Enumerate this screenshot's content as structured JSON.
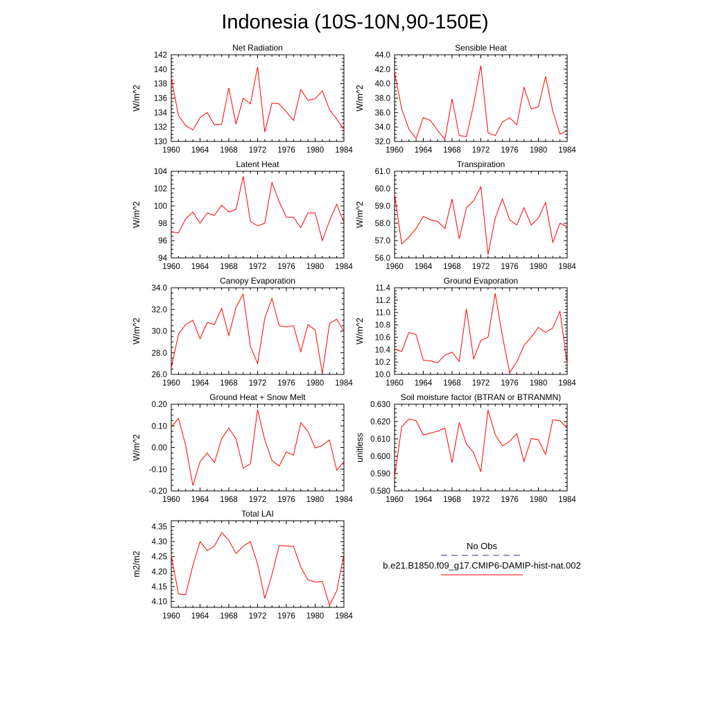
{
  "figure": {
    "title": "Indonesia (10S-10N,90-150E)"
  },
  "legend": {
    "entries": [
      {
        "label": "No Obs",
        "color": "#2c2c8c",
        "dashed": true
      },
      {
        "label": "b.e21.B1850.f09_g17.CMIP6-DAMIP-hist-nat.002",
        "color": "#ff0000",
        "dashed": false
      }
    ]
  },
  "chart_data": [
    {
      "type": "line",
      "title": "Net Radiation",
      "ylabel": "W/m^2",
      "xlim": [
        1960,
        1984
      ],
      "ylim": [
        130,
        142
      ],
      "xticks": [
        "1960",
        "1964",
        "1968",
        "1972",
        "1976",
        "1980",
        "1984"
      ],
      "yticks": [
        "130",
        "132",
        "134",
        "136",
        "138",
        "140",
        "142"
      ],
      "x": [
        1960,
        1961,
        1962,
        1963,
        1964,
        1965,
        1966,
        1967,
        1968,
        1969,
        1970,
        1971,
        1972,
        1973,
        1974,
        1975,
        1976,
        1977,
        1978,
        1979,
        1980,
        1981,
        1982,
        1983,
        1984
      ],
      "series": [
        {
          "color": "#ff0000",
          "values": [
            138.8,
            133.6,
            132.2,
            131.6,
            133.3,
            134.0,
            132.3,
            132.4,
            137.4,
            132.4,
            136.0,
            135.2,
            140.3,
            131.3,
            135.3,
            135.2,
            134.1,
            132.9,
            137.2,
            135.7,
            135.9,
            137.0,
            134.4,
            133.1,
            131.7
          ]
        }
      ]
    },
    {
      "type": "line",
      "title": "Sensible Heat",
      "ylabel": "W/m^2",
      "xlim": [
        1960,
        1984
      ],
      "ylim": [
        32,
        44
      ],
      "xticks": [
        "1960",
        "1964",
        "1968",
        "1972",
        "1976",
        "1980",
        "1984"
      ],
      "yticks": [
        "32.0",
        "34.0",
        "36.0",
        "38.0",
        "40.0",
        "42.0",
        "44.0"
      ],
      "x": [
        1960,
        1961,
        1962,
        1963,
        1964,
        1965,
        1966,
        1967,
        1968,
        1969,
        1970,
        1971,
        1972,
        1973,
        1974,
        1975,
        1976,
        1977,
        1978,
        1979,
        1980,
        1981,
        1982,
        1983,
        1984
      ],
      "series": [
        {
          "color": "#ff0000",
          "values": [
            41.6,
            36.5,
            33.7,
            32.4,
            35.3,
            34.9,
            33.5,
            32.3,
            37.9,
            32.8,
            32.7,
            37.1,
            42.5,
            33.2,
            32.8,
            34.7,
            35.3,
            34.3,
            39.5,
            36.5,
            36.8,
            41.0,
            36.2,
            33.0,
            33.5
          ]
        }
      ]
    },
    {
      "type": "line",
      "title": "Latent Heat",
      "ylabel": "W/m^2",
      "xlim": [
        1960,
        1984
      ],
      "ylim": [
        94,
        104
      ],
      "xticks": [
        "1960",
        "1964",
        "1968",
        "1972",
        "1976",
        "1980",
        "1984"
      ],
      "yticks": [
        "94",
        "96",
        "98",
        "100",
        "102",
        "104"
      ],
      "x": [
        1960,
        1961,
        1962,
        1963,
        1964,
        1965,
        1966,
        1967,
        1968,
        1969,
        1970,
        1971,
        1972,
        1973,
        1974,
        1975,
        1976,
        1977,
        1978,
        1979,
        1980,
        1981,
        1982,
        1983,
        1984
      ],
      "series": [
        {
          "color": "#ff0000",
          "values": [
            97.0,
            96.9,
            98.5,
            99.3,
            98.0,
            99.2,
            98.9,
            100.1,
            99.3,
            99.6,
            103.4,
            98.2,
            97.7,
            98.0,
            102.7,
            100.5,
            98.7,
            98.7,
            97.5,
            99.2,
            99.2,
            96.0,
            98.3,
            100.2,
            98.1
          ]
        }
      ]
    },
    {
      "type": "line",
      "title": "Transpiration",
      "ylabel": "W/m^2",
      "xlim": [
        1960,
        1984
      ],
      "ylim": [
        56,
        61
      ],
      "xticks": [
        "1960",
        "1964",
        "1968",
        "1972",
        "1976",
        "1980",
        "1984"
      ],
      "yticks": [
        "56.0",
        "57.0",
        "58.0",
        "59.0",
        "60.0",
        "61.0"
      ],
      "x": [
        1960,
        1961,
        1962,
        1963,
        1964,
        1965,
        1966,
        1967,
        1968,
        1969,
        1970,
        1971,
        1972,
        1973,
        1974,
        1975,
        1976,
        1977,
        1978,
        1979,
        1980,
        1981,
        1982,
        1983,
        1984
      ],
      "series": [
        {
          "color": "#ff0000",
          "values": [
            59.7,
            56.8,
            57.2,
            57.7,
            58.4,
            58.2,
            58.1,
            57.7,
            59.4,
            57.1,
            58.9,
            59.3,
            60.1,
            56.2,
            58.3,
            59.4,
            58.2,
            57.9,
            58.9,
            57.9,
            58.3,
            59.2,
            56.9,
            58.0,
            57.8
          ]
        }
      ]
    },
    {
      "type": "line",
      "title": "Canopy Evaporation",
      "ylabel": "W/m^2",
      "xlim": [
        1960,
        1984
      ],
      "ylim": [
        26,
        34
      ],
      "xticks": [
        "1960",
        "1964",
        "1968",
        "1972",
        "1976",
        "1980",
        "1984"
      ],
      "yticks": [
        "26.0",
        "28.0",
        "30.0",
        "32.0",
        "34.0"
      ],
      "x": [
        1960,
        1961,
        1962,
        1963,
        1964,
        1965,
        1966,
        1967,
        1968,
        1969,
        1970,
        1971,
        1972,
        1973,
        1974,
        1975,
        1976,
        1977,
        1978,
        1979,
        1980,
        1981,
        1982,
        1983,
        1984
      ],
      "series": [
        {
          "color": "#ff0000",
          "values": [
            26.6,
            29.7,
            30.6,
            31.0,
            29.3,
            30.8,
            30.6,
            32.1,
            29.6,
            32.2,
            33.4,
            28.6,
            27.0,
            31.2,
            33.0,
            30.5,
            30.4,
            30.5,
            28.1,
            30.6,
            30.1,
            26.1,
            30.7,
            31.1,
            30.0
          ]
        }
      ]
    },
    {
      "type": "line",
      "title": "Ground Evaporation",
      "ylabel": "W/m^2",
      "xlim": [
        1960,
        1984
      ],
      "ylim": [
        10.0,
        11.4
      ],
      "xticks": [
        "1960",
        "1964",
        "1968",
        "1972",
        "1976",
        "1980",
        "1984"
      ],
      "yticks": [
        "10.0",
        "10.2",
        "10.4",
        "10.6",
        "10.8",
        "11.0",
        "11.2",
        "11.4"
      ],
      "x": [
        1960,
        1961,
        1962,
        1963,
        1964,
        1965,
        1966,
        1967,
        1968,
        1969,
        1970,
        1971,
        1972,
        1973,
        1974,
        1975,
        1976,
        1977,
        1978,
        1979,
        1980,
        1981,
        1982,
        1983,
        1984
      ],
      "series": [
        {
          "color": "#ff0000",
          "values": [
            10.41,
            10.37,
            10.68,
            10.64,
            10.23,
            10.22,
            10.19,
            10.31,
            10.36,
            10.21,
            11.06,
            10.25,
            10.55,
            10.6,
            11.31,
            10.62,
            10.03,
            10.2,
            10.47,
            10.6,
            10.76,
            10.68,
            10.75,
            11.02,
            10.17
          ]
        }
      ]
    },
    {
      "type": "line",
      "title": "Ground Heat + Snow Melt",
      "ylabel": "W/m^2",
      "xlim": [
        1960,
        1984
      ],
      "ylim": [
        -0.2,
        0.2
      ],
      "xticks": [
        "1960",
        "1964",
        "1968",
        "1972",
        "1976",
        "1980",
        "1984"
      ],
      "yticks": [
        "-0.20",
        "-0.10",
        "0.00",
        "0.10",
        "0.20"
      ],
      "x": [
        1960,
        1961,
        1962,
        1963,
        1964,
        1965,
        1966,
        1967,
        1968,
        1969,
        1970,
        1971,
        1972,
        1973,
        1974,
        1975,
        1976,
        1977,
        1978,
        1979,
        1980,
        1981,
        1982,
        1983,
        1984
      ],
      "series": [
        {
          "color": "#ff0000",
          "values": [
            0.095,
            0.135,
            0.01,
            -0.175,
            -0.065,
            -0.025,
            -0.07,
            0.04,
            0.09,
            0.04,
            -0.095,
            -0.075,
            0.175,
            0.035,
            -0.06,
            -0.085,
            -0.02,
            -0.035,
            0.115,
            0.075,
            -0.002,
            0.01,
            0.035,
            -0.105,
            -0.065
          ]
        }
      ]
    },
    {
      "type": "line",
      "title": "Soil moisture factor (BTRAN or BTRANMN)",
      "ylabel": "unitless",
      "xlim": [
        1960,
        1984
      ],
      "ylim": [
        0.58,
        0.63
      ],
      "xticks": [
        "1960",
        "1964",
        "1968",
        "1972",
        "1976",
        "1980",
        "1984"
      ],
      "yticks": [
        "0.580",
        "0.590",
        "0.600",
        "0.610",
        "0.620",
        "0.630"
      ],
      "x": [
        1960,
        1961,
        1962,
        1963,
        1964,
        1965,
        1966,
        1967,
        1968,
        1969,
        1970,
        1971,
        1972,
        1973,
        1974,
        1975,
        1976,
        1977,
        1978,
        1979,
        1980,
        1981,
        1982,
        1983,
        1984
      ],
      "series": [
        {
          "color": "#ff0000",
          "values": [
            0.588,
            0.617,
            0.6215,
            0.6205,
            0.6122,
            0.6133,
            0.6145,
            0.6162,
            0.5963,
            0.6195,
            0.607,
            0.602,
            0.591,
            0.6267,
            0.6125,
            0.606,
            0.6085,
            0.613,
            0.597,
            0.6102,
            0.6095,
            0.601,
            0.621,
            0.6205,
            0.6162
          ]
        }
      ]
    },
    {
      "type": "line",
      "title": "Total LAI",
      "ylabel": "m2/m2",
      "xlim": [
        1960,
        1984
      ],
      "ylim": [
        4.08,
        4.37
      ],
      "xticks": [
        "1960",
        "1964",
        "1968",
        "1972",
        "1976",
        "1980",
        "1984"
      ],
      "yticks": [
        "4.10",
        "4.15",
        "4.20",
        "4.25",
        "4.30",
        "4.35"
      ],
      "x": [
        1960,
        1961,
        1962,
        1963,
        1964,
        1965,
        1966,
        1967,
        1968,
        1969,
        1970,
        1971,
        1972,
        1973,
        1974,
        1975,
        1976,
        1977,
        1978,
        1979,
        1980,
        1981,
        1982,
        1983,
        1984
      ],
      "series": [
        {
          "color": "#ff0000",
          "values": [
            4.255,
            4.125,
            4.122,
            4.22,
            4.3,
            4.27,
            4.285,
            4.33,
            4.305,
            4.26,
            4.285,
            4.3,
            4.225,
            4.11,
            4.19,
            4.287,
            4.286,
            4.284,
            4.215,
            4.172,
            4.165,
            4.167,
            4.087,
            4.135,
            4.257
          ]
        }
      ]
    }
  ]
}
